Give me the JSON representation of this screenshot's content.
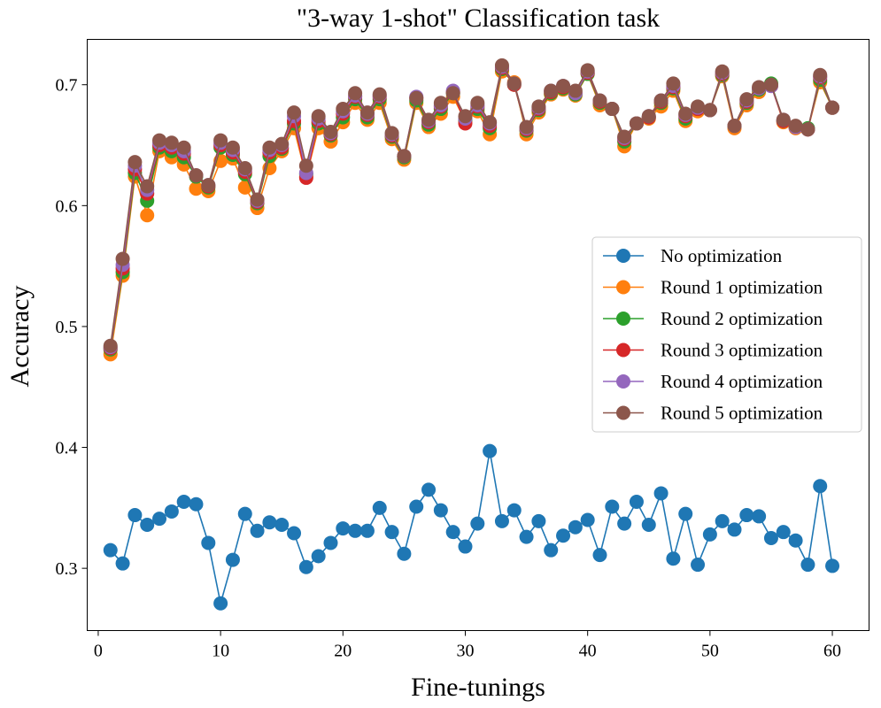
{
  "chart_data": {
    "type": "line",
    "title": "\"3-way 1-shot\" Classification task",
    "xlabel": "Fine-tunings",
    "ylabel": "Accuracy",
    "xlim": [
      -0.9,
      63.0
    ],
    "ylim": [
      0.2485,
      0.7375
    ],
    "xticks": [
      0,
      10,
      20,
      30,
      40,
      50,
      60
    ],
    "yticks": [
      0.3,
      0.4,
      0.5,
      0.6,
      0.7
    ],
    "xtick_labels": [
      "0",
      "10",
      "20",
      "30",
      "40",
      "50",
      "60"
    ],
    "ytick_labels": [
      "0.3",
      "0.4",
      "0.5",
      "0.6",
      "0.7"
    ],
    "legend_position": "center-right",
    "x": [
      1,
      2,
      3,
      4,
      5,
      6,
      7,
      8,
      9,
      10,
      11,
      12,
      13,
      14,
      15,
      16,
      17,
      18,
      19,
      20,
      21,
      22,
      23,
      24,
      25,
      26,
      27,
      28,
      29,
      30,
      31,
      32,
      33,
      34,
      35,
      36,
      37,
      38,
      39,
      40,
      41,
      42,
      43,
      44,
      45,
      46,
      47,
      48,
      49,
      50,
      51,
      52,
      53,
      54,
      55,
      56,
      57,
      58,
      59,
      60
    ],
    "series": [
      {
        "name": "No optimization",
        "color": "#1f77b4",
        "values": [
          0.315,
          0.304,
          0.344,
          0.336,
          0.341,
          0.347,
          0.355,
          0.353,
          0.321,
          0.271,
          0.307,
          0.345,
          0.331,
          0.338,
          0.336,
          0.329,
          0.301,
          0.31,
          0.321,
          0.333,
          0.331,
          0.331,
          0.35,
          0.33,
          0.312,
          0.351,
          0.365,
          0.348,
          0.33,
          0.318,
          0.337,
          0.397,
          0.339,
          0.348,
          0.326,
          0.339,
          0.315,
          0.327,
          0.334,
          0.34,
          0.311,
          0.351,
          0.337,
          0.355,
          0.336,
          0.362,
          0.308,
          0.345,
          0.303,
          0.328,
          0.339,
          0.332,
          0.344,
          0.343,
          0.325,
          0.33,
          0.323,
          0.303,
          0.368,
          0.302
        ]
      },
      {
        "name": "Round 1 optimization",
        "color": "#ff7f0e",
        "values": [
          0.477,
          0.542,
          0.624,
          0.592,
          0.645,
          0.64,
          0.634,
          0.614,
          0.612,
          0.637,
          0.639,
          0.615,
          0.598,
          0.631,
          0.645,
          0.664,
          0.624,
          0.664,
          0.653,
          0.669,
          0.685,
          0.671,
          0.685,
          0.655,
          0.638,
          0.685,
          0.665,
          0.676,
          0.69,
          0.67,
          0.678,
          0.659,
          0.711,
          0.702,
          0.659,
          0.677,
          0.692,
          0.696,
          0.691,
          0.709,
          0.683,
          0.68,
          0.649,
          0.668,
          0.672,
          0.682,
          0.695,
          0.67,
          0.678,
          0.679,
          0.707,
          0.664,
          0.683,
          0.694,
          0.7,
          0.669,
          0.664,
          0.663,
          0.702,
          0.681
        ]
      },
      {
        "name": "Round 2 optimization",
        "color": "#2ca02c",
        "values": [
          0.481,
          0.545,
          0.627,
          0.604,
          0.648,
          0.645,
          0.64,
          0.624,
          0.615,
          0.648,
          0.642,
          0.626,
          0.602,
          0.641,
          0.647,
          0.668,
          0.626,
          0.668,
          0.658,
          0.673,
          0.688,
          0.673,
          0.688,
          0.657,
          0.64,
          0.687,
          0.667,
          0.68,
          0.693,
          0.671,
          0.68,
          0.664,
          0.713,
          0.7,
          0.662,
          0.679,
          0.693,
          0.697,
          0.692,
          0.709,
          0.685,
          0.68,
          0.653,
          0.668,
          0.673,
          0.685,
          0.697,
          0.672,
          0.68,
          0.679,
          0.708,
          0.666,
          0.685,
          0.696,
          0.701,
          0.67,
          0.665,
          0.664,
          0.704,
          0.681
        ]
      },
      {
        "name": "Round 3 optimization",
        "color": "#d62728",
        "values": [
          0.482,
          0.548,
          0.63,
          0.61,
          0.65,
          0.648,
          0.643,
          0.625,
          0.616,
          0.65,
          0.644,
          0.628,
          0.603,
          0.644,
          0.648,
          0.67,
          0.623,
          0.67,
          0.659,
          0.676,
          0.69,
          0.675,
          0.69,
          0.658,
          0.641,
          0.689,
          0.669,
          0.682,
          0.694,
          0.668,
          0.682,
          0.666,
          0.714,
          0.7,
          0.663,
          0.68,
          0.694,
          0.698,
          0.693,
          0.71,
          0.686,
          0.68,
          0.655,
          0.668,
          0.673,
          0.686,
          0.698,
          0.674,
          0.68,
          0.679,
          0.709,
          0.666,
          0.686,
          0.697,
          0.699,
          0.67,
          0.665,
          0.663,
          0.706,
          0.681
        ]
      },
      {
        "name": "Round 4 optimization",
        "color": "#9467bd",
        "values": [
          0.483,
          0.551,
          0.633,
          0.613,
          0.652,
          0.65,
          0.645,
          0.625,
          0.617,
          0.652,
          0.646,
          0.63,
          0.604,
          0.646,
          0.65,
          0.674,
          0.627,
          0.672,
          0.66,
          0.678,
          0.691,
          0.676,
          0.691,
          0.659,
          0.641,
          0.69,
          0.67,
          0.683,
          0.695,
          0.672,
          0.683,
          0.668,
          0.715,
          0.701,
          0.664,
          0.681,
          0.695,
          0.699,
          0.693,
          0.711,
          0.687,
          0.68,
          0.656,
          0.668,
          0.674,
          0.687,
          0.699,
          0.675,
          0.681,
          0.679,
          0.71,
          0.666,
          0.687,
          0.697,
          0.699,
          0.671,
          0.665,
          0.663,
          0.707,
          0.681
        ]
      },
      {
        "name": "Round 5 optimization",
        "color": "#8c564b",
        "values": [
          0.484,
          0.556,
          0.636,
          0.616,
          0.654,
          0.652,
          0.648,
          0.625,
          0.617,
          0.654,
          0.648,
          0.631,
          0.605,
          0.648,
          0.651,
          0.677,
          0.633,
          0.674,
          0.661,
          0.68,
          0.693,
          0.677,
          0.692,
          0.66,
          0.641,
          0.689,
          0.671,
          0.685,
          0.693,
          0.674,
          0.685,
          0.669,
          0.716,
          0.701,
          0.665,
          0.682,
          0.695,
          0.699,
          0.695,
          0.712,
          0.687,
          0.68,
          0.657,
          0.668,
          0.674,
          0.687,
          0.701,
          0.676,
          0.682,
          0.679,
          0.711,
          0.666,
          0.688,
          0.698,
          0.7,
          0.671,
          0.666,
          0.663,
          0.708,
          0.681
        ]
      }
    ]
  }
}
